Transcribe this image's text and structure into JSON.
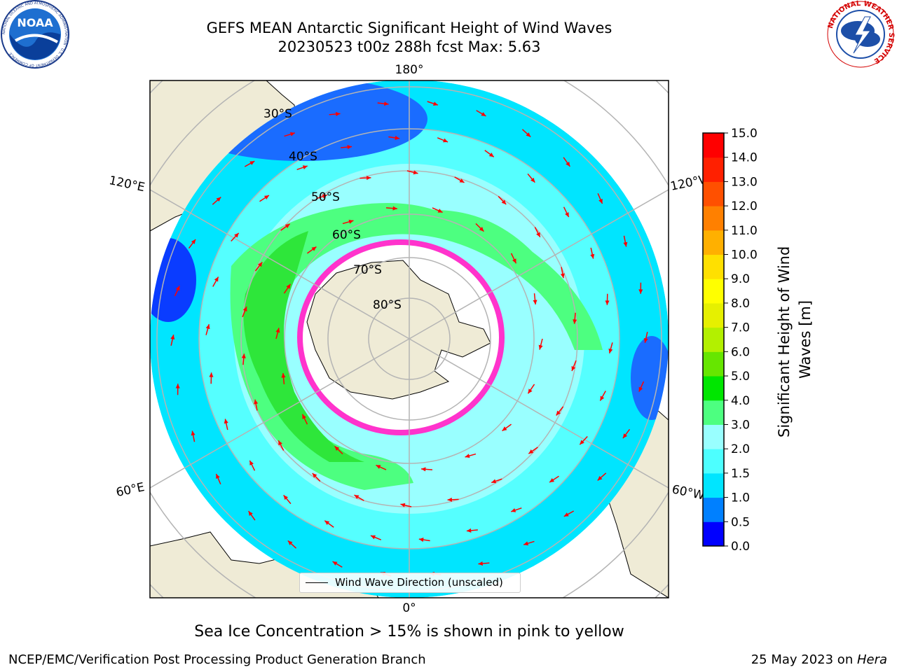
{
  "header": {
    "title_line1": "GEFS MEAN Antarctic Significant Height of Wind Waves",
    "title_line2": "20230523 t00z 288h fcst   Max: 5.63"
  },
  "logos": {
    "noaa_text": "NOAA",
    "noaa_ring": "NATIONAL OCEANIC AND ATMOSPHERIC ADMINISTRATION · U.S. DEPARTMENT OF COMMERCE",
    "nws_ring": "NATIONAL WEATHER SERVICE"
  },
  "map": {
    "longitude_labels": {
      "top": "180°",
      "bottom": "0°",
      "left_upper": "120°E",
      "left_lower": "60°E",
      "right_upper": "120°W",
      "right_lower": "60°W"
    },
    "latitude_labels": [
      "30°S",
      "40°S",
      "50°S",
      "60°S",
      "70°S",
      "80°S"
    ],
    "legend_label": "Wind Wave Direction (unscaled)",
    "colors": {
      "land": "#efebd6",
      "ocean_low": "#00e5ff",
      "ocean_mid": "#80ffff",
      "green": "#36e65a",
      "ice": "#ff33cc",
      "arrow": "#ff0000",
      "grid": "#b4b4b4"
    }
  },
  "colorbar": {
    "label": "Significant Height of Wind Waves [m]",
    "ticks": [
      "0.0",
      "0.5",
      "1.0",
      "1.5",
      "2.0",
      "3.0",
      "4.0",
      "5.0",
      "6.0",
      "7.0",
      "8.0",
      "9.0",
      "10.0",
      "11.0",
      "12.0",
      "13.0",
      "14.0",
      "15.0"
    ],
    "colors": [
      "#0000ff",
      "#0080ff",
      "#00e5ff",
      "#4dffff",
      "#99ffff",
      "#4dff80",
      "#00e600",
      "#66e600",
      "#b3f000",
      "#e6f000",
      "#ffff00",
      "#ffe000",
      "#ffb000",
      "#ff8000",
      "#ff5000",
      "#ff2000",
      "#ff0000"
    ]
  },
  "caption": "Sea Ice Concentration > 15% is shown in pink to yellow",
  "footer": {
    "left": "NCEP/EMC/Verification Post Processing Product Generation Branch",
    "date": "25 May 2023 on ",
    "machine": "Hera"
  }
}
